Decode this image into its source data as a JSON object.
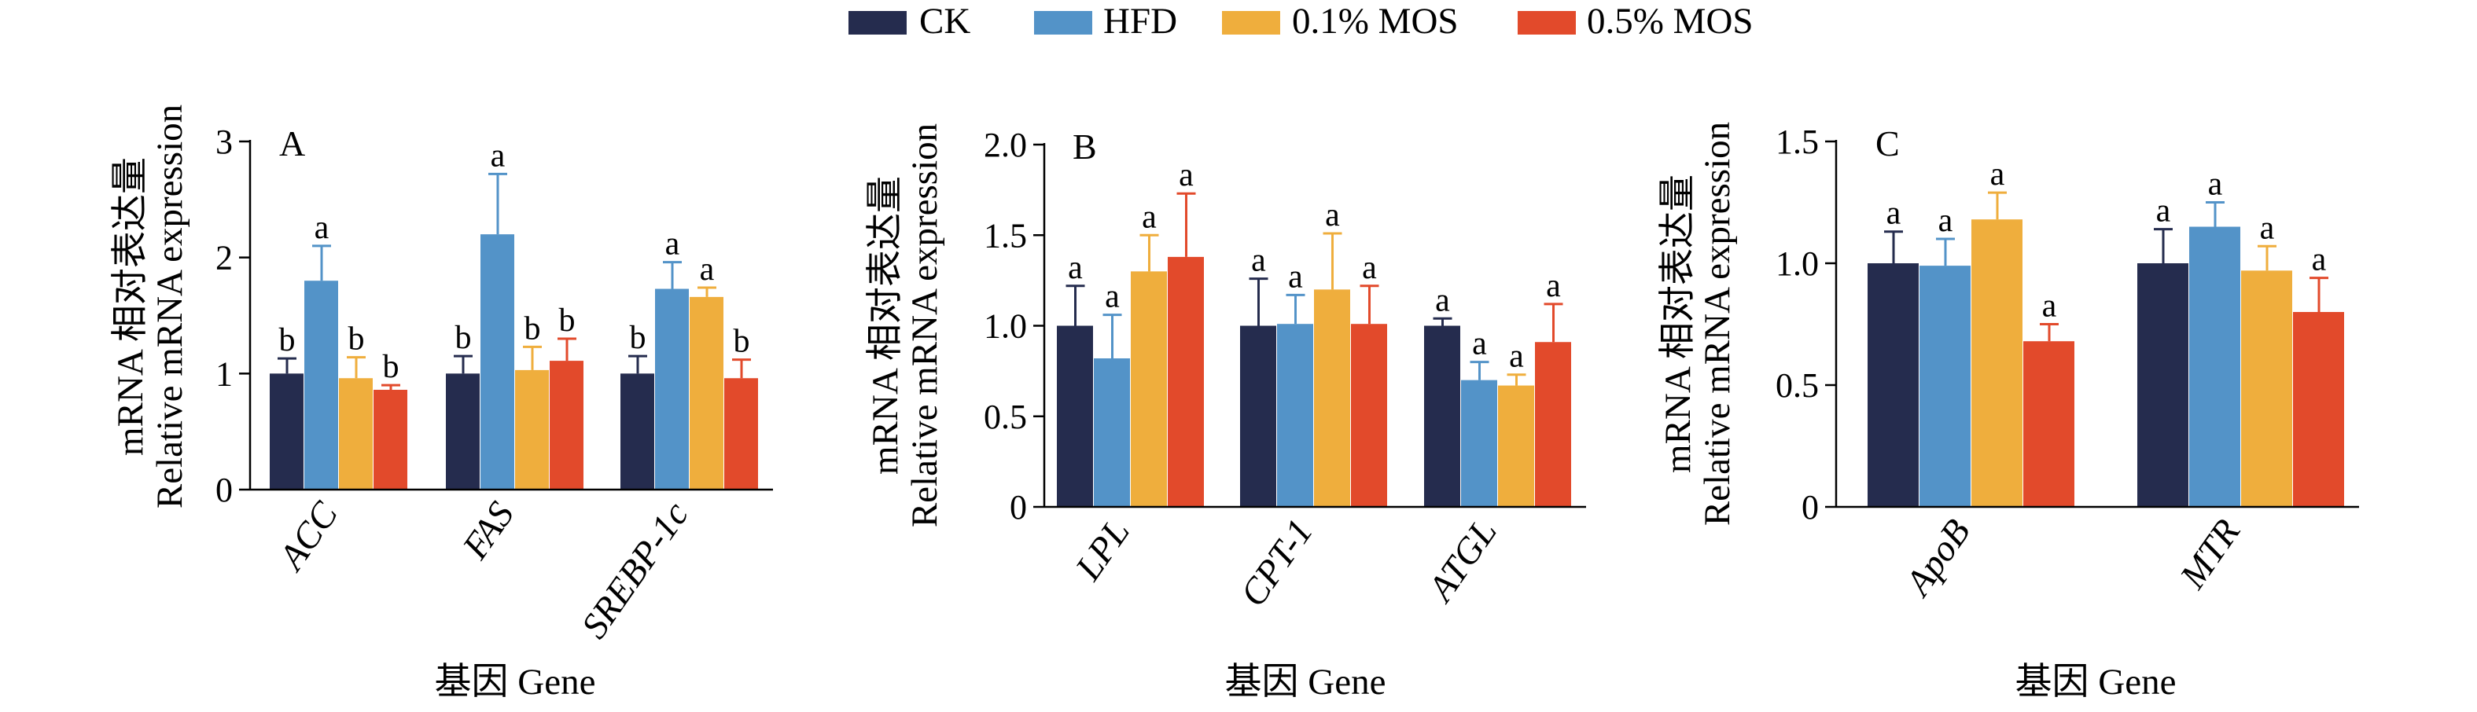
{
  "legend": [
    {
      "name": "CK",
      "color": "#252c4e"
    },
    {
      "name": "HFD",
      "color": "#5393c8"
    },
    {
      "name": "0.1% MOS",
      "color": "#efae3d"
    },
    {
      "name": "0.5% MOS",
      "color": "#e24a2b"
    }
  ],
  "chart_data": [
    {
      "type": "bar",
      "panel_label": "A",
      "ylabel": [
        "mRNA 相对表达量",
        "Relative mRNA expression"
      ],
      "xlabel": "基因 Gene",
      "ylim": [
        0,
        3
      ],
      "yticks": [
        "0",
        "1",
        "2",
        "3"
      ],
      "categories": [
        "ACC",
        "FAS",
        "SREBP-1c"
      ],
      "series": [
        {
          "name": "CK",
          "values": [
            1.0,
            1.0,
            1.0
          ],
          "errors": [
            0.13,
            0.15,
            0.15
          ],
          "labels": [
            "b",
            "b",
            "b"
          ]
        },
        {
          "name": "HFD",
          "values": [
            1.8,
            2.2,
            1.73
          ],
          "errors": [
            0.3,
            0.52,
            0.23
          ],
          "labels": [
            "a",
            "a",
            "a"
          ]
        },
        {
          "name": "0.1% MOS",
          "values": [
            0.96,
            1.03,
            1.66
          ],
          "errors": [
            0.18,
            0.2,
            0.08
          ],
          "labels": [
            "b",
            "b",
            "a"
          ]
        },
        {
          "name": "0.5% MOS",
          "values": [
            0.86,
            1.11,
            0.96
          ],
          "errors": [
            0.04,
            0.19,
            0.16
          ],
          "labels": [
            "b",
            "b",
            "b"
          ]
        }
      ]
    },
    {
      "type": "bar",
      "panel_label": "B",
      "ylabel": [
        "mRNA 相对表达量",
        "Relative mRNA expression"
      ],
      "xlabel": "基因 Gene",
      "ylim": [
        0,
        2.0
      ],
      "yticks": [
        "0",
        "0.5",
        "1.0",
        "1.5",
        "2.0"
      ],
      "categories": [
        "LPL",
        "CPT-1",
        "ATGL"
      ],
      "series": [
        {
          "name": "CK",
          "values": [
            1.0,
            1.0,
            1.0
          ],
          "errors": [
            0.22,
            0.26,
            0.04
          ],
          "labels": [
            "a",
            "a",
            "a"
          ]
        },
        {
          "name": "HFD",
          "values": [
            0.82,
            1.01,
            0.7
          ],
          "errors": [
            0.24,
            0.16,
            0.1
          ],
          "labels": [
            "a",
            "a",
            "a"
          ]
        },
        {
          "name": "0.1% MOS",
          "values": [
            1.3,
            1.2,
            0.67
          ],
          "errors": [
            0.2,
            0.31,
            0.06
          ],
          "labels": [
            "a",
            "a",
            "a"
          ]
        },
        {
          "name": "0.5% MOS",
          "values": [
            1.38,
            1.01,
            0.91
          ],
          "errors": [
            0.35,
            0.21,
            0.21
          ],
          "labels": [
            "a",
            "a",
            "a"
          ]
        }
      ]
    },
    {
      "type": "bar",
      "panel_label": "C",
      "ylabel": [
        "mRNA 相对表达量",
        "Relative mRNA expression"
      ],
      "xlabel": "基因 Gene",
      "ylim": [
        0,
        1.5
      ],
      "yticks": [
        "0",
        "0.5",
        "1.0",
        "1.5"
      ],
      "categories": [
        "ApoB",
        "MTR"
      ],
      "series": [
        {
          "name": "CK",
          "values": [
            1.0,
            1.0
          ],
          "errors": [
            0.13,
            0.14
          ],
          "labels": [
            "a",
            "a"
          ]
        },
        {
          "name": "HFD",
          "values": [
            0.99,
            1.15
          ],
          "errors": [
            0.11,
            0.1
          ],
          "labels": [
            "a",
            "a"
          ]
        },
        {
          "name": "0.1% MOS",
          "values": [
            1.18,
            0.97
          ],
          "errors": [
            0.11,
            0.1
          ],
          "labels": [
            "a",
            "a"
          ]
        },
        {
          "name": "0.5% MOS",
          "values": [
            0.68,
            0.8
          ],
          "errors": [
            0.07,
            0.14
          ],
          "labels": [
            "a",
            "a"
          ]
        }
      ]
    }
  ]
}
